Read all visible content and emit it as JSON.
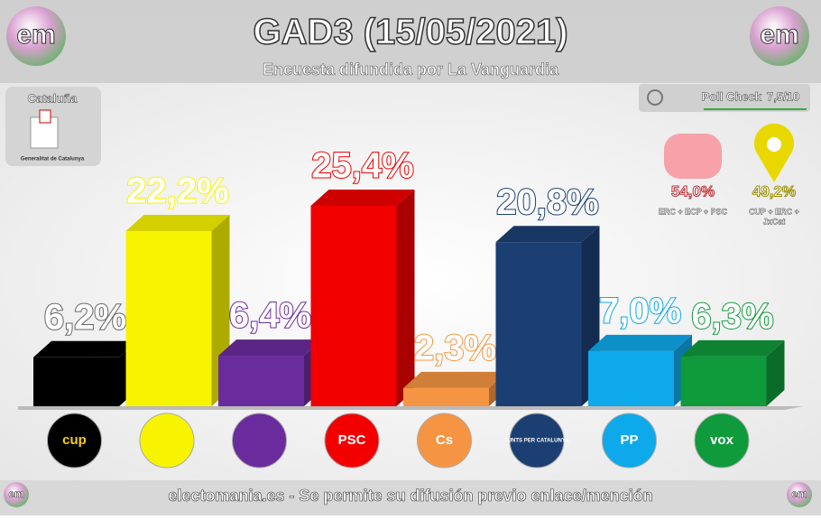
{
  "header": {
    "title": "GAD3 (15/05/2021)",
    "subtitle": "Encuesta difundida por La Vanguardia",
    "logo_text": "em"
  },
  "region": {
    "name": "Cataluña",
    "logo_text": "Generalitat de Catalunya"
  },
  "poll_check": {
    "label": "Poll Check",
    "score": "7,5/10"
  },
  "blocs": [
    {
      "value_label": "54,0%",
      "parties": [
        "ERC + ECP + PSC"
      ],
      "color": "#f7a1a8"
    },
    {
      "value_label": "49,2%",
      "parties": [
        "CUP + ERC +",
        "JxCat"
      ],
      "color": "#e8d800"
    }
  ],
  "chart_data": {
    "type": "bar",
    "categories": [
      "cup",
      null,
      null,
      "PSC",
      "Cs",
      "JUNTS PER CATALUNYA",
      "PP",
      "vox"
    ],
    "values": [
      6.2,
      22.2,
      6.4,
      25.4,
      2.3,
      20.8,
      7.0,
      6.3
    ],
    "value_labels": [
      "6,2%",
      "22,2%",
      "6,4%",
      "25,4%",
      "2,3%",
      "20,8%",
      "7,0%",
      "6,3%"
    ],
    "colors": [
      "#000000",
      "#f8f400",
      "#6a2c9c",
      "#f20000",
      "#f59543",
      "#1c3f73",
      "#0ea9ea",
      "#0f9a3b"
    ]
  },
  "footer": "electomania.es - Se permite su difusión previo enlace/mención"
}
